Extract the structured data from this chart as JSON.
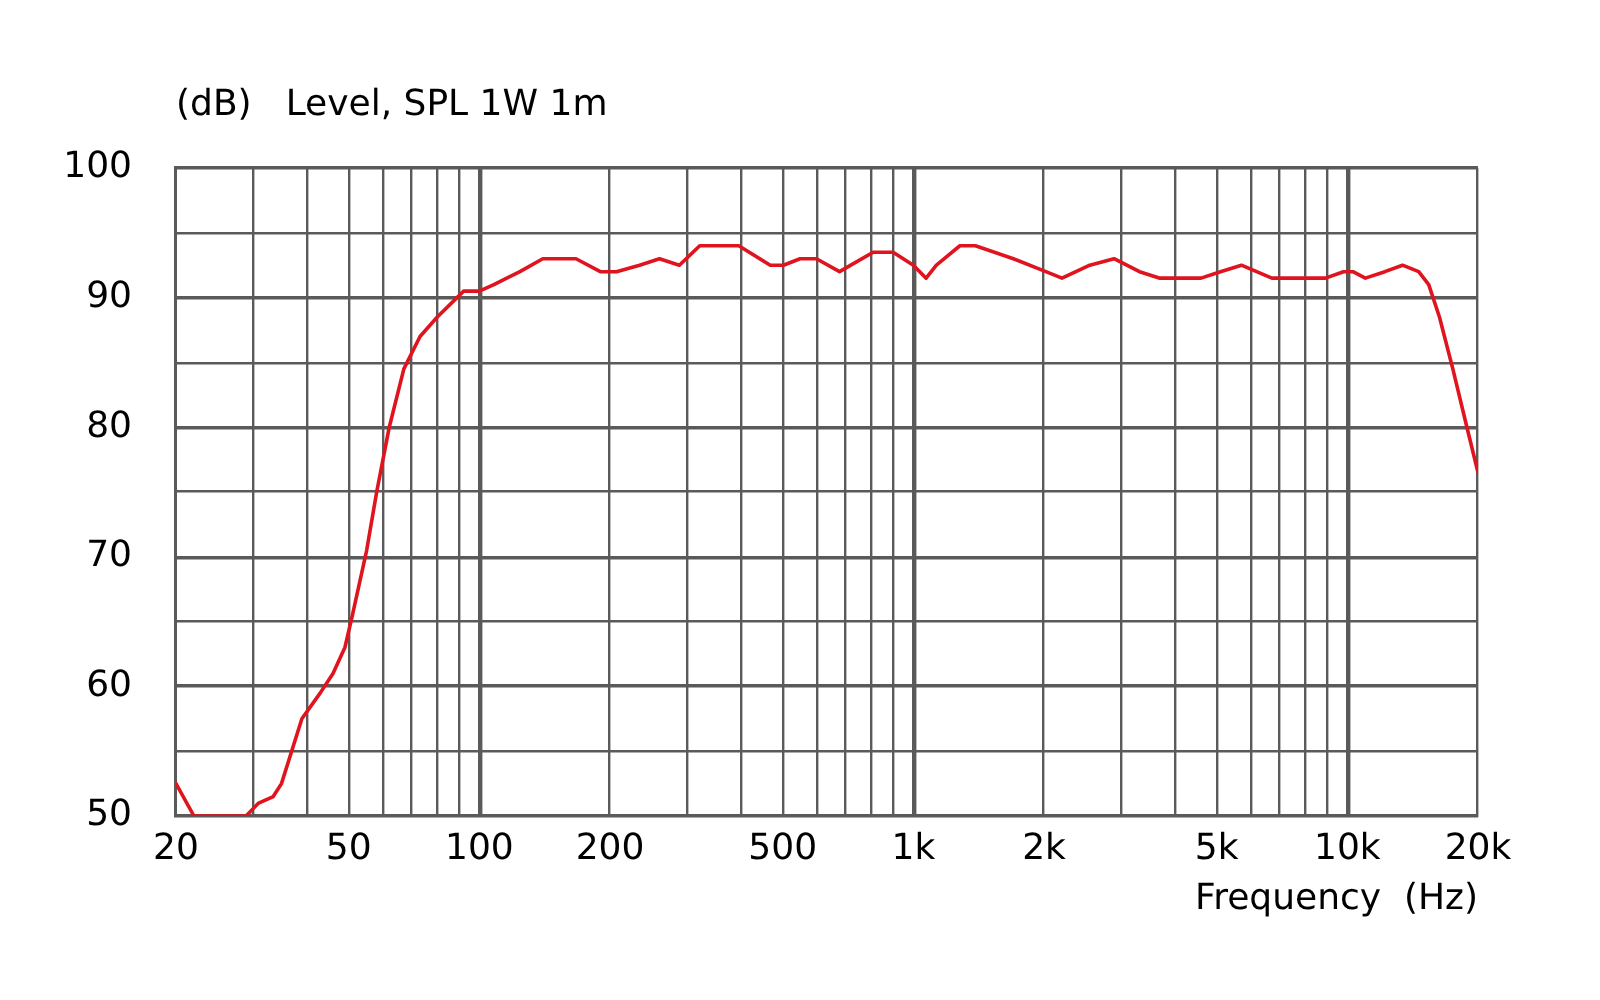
{
  "chart_data": {
    "type": "line",
    "title": "Level, SPL 1W 1m",
    "ylabel": "(dB)",
    "xlabel": "Frequency  (Hz)",
    "log": "x",
    "grid": true,
    "color": "#e0141e",
    "xlim": [
      20,
      20000
    ],
    "xticks": [
      20,
      {
        "value": 30,
        "label": null
      },
      {
        "value": 40,
        "label": null
      },
      50,
      {
        "value": 60,
        "label": null
      },
      {
        "value": 70,
        "label": null
      },
      {
        "value": 80,
        "label": null
      },
      {
        "value": 90,
        "label": null
      },
      100,
      200,
      {
        "value": 300,
        "label": null
      },
      {
        "value": 400,
        "label": null
      },
      500,
      {
        "value": 600,
        "label": null
      },
      {
        "value": 700,
        "label": null
      },
      {
        "value": 800,
        "label": null
      },
      {
        "value": 900,
        "label": null
      },
      {
        "value": 1000,
        "label": "1k"
      },
      {
        "value": 2000,
        "label": "2k"
      },
      {
        "value": 3000,
        "label": null
      },
      {
        "value": 4000,
        "label": null
      },
      {
        "value": 5000,
        "label": "5k"
      },
      {
        "value": 6000,
        "label": null
      },
      {
        "value": 7000,
        "label": null
      },
      {
        "value": 8000,
        "label": null
      },
      {
        "value": 9000,
        "label": null
      },
      {
        "value": 10000,
        "label": "10k"
      },
      {
        "value": 20000,
        "label": "20k"
      }
    ],
    "ylim": [
      50,
      100
    ],
    "yticks": [
      50,
      {
        "value": 55,
        "label": null
      },
      60,
      {
        "value": 65,
        "label": null
      },
      70,
      {
        "value": 75,
        "label": null
      },
      80,
      {
        "value": 85,
        "label": null
      },
      90,
      {
        "value": 95,
        "label": null
      },
      100
    ],
    "x": [
      20,
      22,
      29,
      31,
      33.5,
      35,
      39,
      43,
      46,
      49,
      51,
      55,
      58,
      62,
      67,
      73,
      80,
      92,
      100,
      108,
      124,
      140,
      156,
      167,
      190,
      207,
      234,
      260,
      289,
      322,
      370,
      396,
      468,
      502,
      548,
      598,
      676,
      808,
      898,
      1000,
      1070,
      1130,
      1280,
      1390,
      1700,
      2020,
      2200,
      2550,
      2900,
      3320,
      3700,
      4600,
      5100,
      5700,
      6700,
      7600,
      8900,
      9800,
      10300,
      11000,
      12200,
      13400,
      14600,
      15400,
      16300,
      17500,
      18700,
      20000
    ],
    "values": [
      52.5,
      50,
      50,
      51,
      51.5,
      52.5,
      57.5,
      59.5,
      61,
      63,
      65.5,
      70.5,
      75,
      80,
      84.5,
      87,
      88.5,
      90.5,
      90.5,
      91,
      92,
      93,
      93,
      93,
      92,
      92,
      92.5,
      93,
      92.5,
      94,
      94,
      94,
      92.5,
      92.5,
      93,
      93,
      92,
      93.5,
      93.5,
      92.5,
      91.5,
      92.5,
      94,
      94,
      93,
      92,
      91.5,
      92.5,
      93,
      92,
      91.5,
      91.5,
      92,
      92.5,
      91.5,
      91.5,
      91.5,
      92,
      92,
      91.5,
      92,
      92.5,
      92,
      91,
      88.5,
      84.5,
      80.5,
      76.5
    ]
  }
}
